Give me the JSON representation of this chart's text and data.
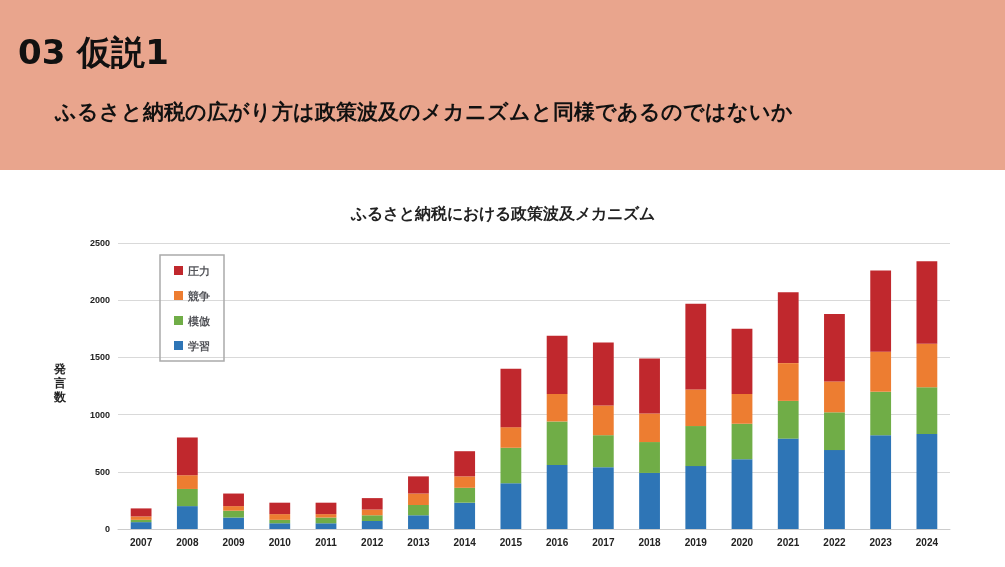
{
  "chart_data": {
    "type": "bar",
    "title": "ふるさと納税における政策波及メカニズム",
    "ylabel": "発言数",
    "annotations": [
      "03 仮説1",
      "ふるさと納税の広がり方は政策波及のメカニズムと同様であるのではないか"
    ],
    "categories": [
      "2007",
      "2008",
      "2009",
      "2010",
      "2011",
      "2012",
      "2013",
      "2014",
      "2015",
      "2016",
      "2017",
      "2018",
      "2019",
      "2020",
      "2021",
      "2022",
      "2023",
      "2024"
    ],
    "stacked": true,
    "series": [
      {
        "name": "学習",
        "color": "#2e75b6",
        "values": [
          60,
          200,
          100,
          50,
          50,
          70,
          120,
          230,
          400,
          560,
          540,
          490,
          550,
          610,
          790,
          690,
          820,
          830
        ]
      },
      {
        "name": "模倣",
        "color": "#70ad47",
        "values": [
          20,
          150,
          60,
          30,
          50,
          50,
          90,
          130,
          310,
          380,
          280,
          270,
          350,
          310,
          330,
          330,
          380,
          410
        ]
      },
      {
        "name": "競争",
        "color": "#ed7d31",
        "values": [
          30,
          120,
          40,
          50,
          30,
          50,
          100,
          100,
          180,
          240,
          260,
          250,
          320,
          260,
          330,
          270,
          350,
          380
        ]
      },
      {
        "name": "圧力",
        "color": "#c0282d",
        "values": [
          70,
          330,
          110,
          100,
          100,
          100,
          150,
          220,
          510,
          510,
          550,
          480,
          750,
          570,
          620,
          590,
          710,
          720
        ]
      }
    ],
    "ylim": [
      0,
      2500
    ],
    "yticks": [
      0,
      500,
      1000,
      1500,
      2000,
      2500
    ],
    "grid": "y",
    "legend": "top left"
  }
}
